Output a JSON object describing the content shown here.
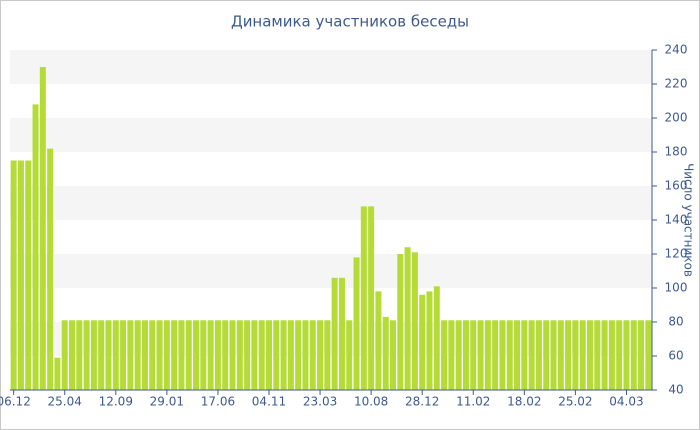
{
  "chart_data": {
    "type": "bar",
    "title": "Динамика участников беседы",
    "y_label": "Число участников",
    "categories": [
      "06.12",
      null,
      null,
      null,
      null,
      null,
      null,
      "25.04",
      null,
      null,
      null,
      null,
      null,
      null,
      "12.09",
      null,
      null,
      null,
      null,
      null,
      null,
      "29.01",
      null,
      null,
      null,
      null,
      null,
      null,
      "17.06",
      null,
      null,
      null,
      null,
      null,
      null,
      "04.11",
      null,
      null,
      null,
      null,
      null,
      null,
      "23.03",
      null,
      null,
      null,
      null,
      null,
      null,
      "10.08",
      null,
      null,
      null,
      null,
      null,
      null,
      "28.12",
      null,
      null,
      null,
      null,
      null,
      null,
      "11.02",
      null,
      null,
      null,
      null,
      null,
      null,
      "18.02",
      null,
      null,
      null,
      null,
      null,
      null,
      "25.02",
      null,
      null,
      null,
      null,
      null,
      null,
      "04.03",
      null,
      null,
      null
    ],
    "values": [
      175,
      175,
      175,
      208,
      230,
      182,
      59,
      81,
      81,
      81,
      81,
      81,
      81,
      81,
      81,
      81,
      81,
      81,
      81,
      81,
      81,
      81,
      81,
      81,
      81,
      81,
      81,
      81,
      81,
      81,
      81,
      81,
      81,
      81,
      81,
      81,
      81,
      81,
      81,
      81,
      81,
      81,
      81,
      81,
      106,
      106,
      81,
      118,
      148,
      148,
      98,
      83,
      81,
      120,
      124,
      121,
      96,
      98,
      101,
      81,
      81,
      81,
      81,
      81,
      81,
      81,
      81,
      81,
      81,
      81,
      81,
      81,
      81,
      81,
      81,
      81,
      81,
      81,
      81,
      81,
      81,
      81,
      81,
      81,
      81,
      81,
      81,
      81
    ],
    "color": "#b5dc36",
    "ylim": [
      40,
      240
    ],
    "yticks": [
      40,
      60,
      80,
      100,
      120,
      140,
      160,
      180,
      200,
      220,
      240
    ],
    "grid": true
  }
}
